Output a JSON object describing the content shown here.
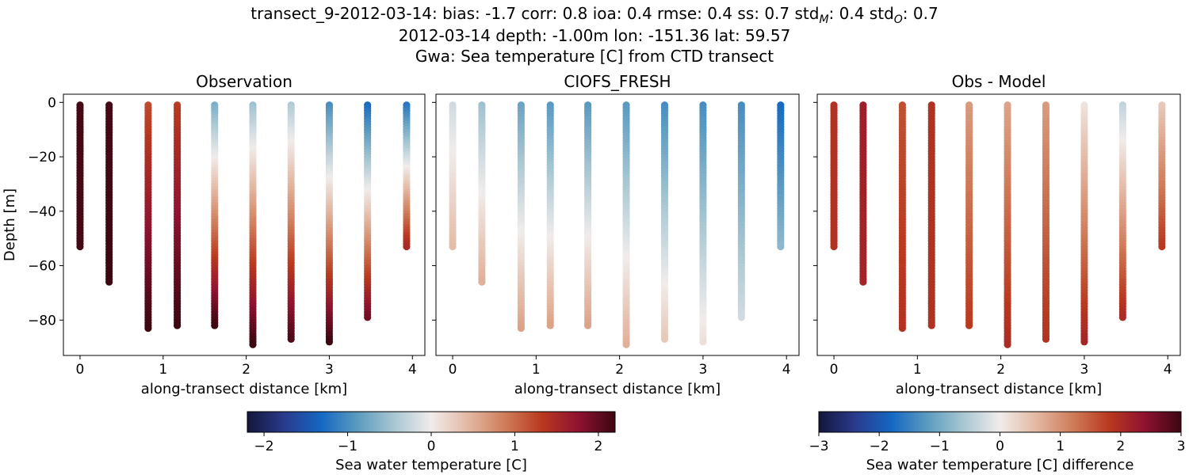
{
  "figure": {
    "title_line1": "transect_9-2012-03-14: bias: -1.7  corr: 0.8  ioa: 0.4  rmse: 0.4  ss: 0.7  std",
    "title_line1_sub_m": "M",
    "title_line1_mid": ": 0.4  std",
    "title_line1_sub_o": "O",
    "title_line1_end": ": 0.7",
    "title_line2": "2012-03-14 depth: -1.00m lon: -151.36 lat: 59.57",
    "title_line3": "Gwa: Sea temperature [C] from CTD transect"
  },
  "colors": {
    "cmap_stops": [
      "#13163b",
      "#2a3a8c",
      "#1467c2",
      "#5c9bc0",
      "#a9c7d2",
      "#f0eceb",
      "#e3b8a3",
      "#cf7d5a",
      "#b9391f",
      "#8f1230",
      "#3c0711"
    ],
    "axis": "#000000"
  },
  "chart_data": [
    {
      "type": "scatter",
      "title": "Observation",
      "xlabel": "along-transect distance [km]",
      "ylabel": "Depth [m]",
      "xlim": [
        -0.2,
        4.15
      ],
      "ylim": [
        -93,
        3
      ],
      "xticks": [
        0,
        1,
        2,
        3,
        4
      ],
      "yticks": [
        0,
        -20,
        -40,
        -60,
        -80
      ],
      "clim": [
        -2.2,
        2.2
      ],
      "profiles": [
        {
          "x": 0.0,
          "max_depth": -53,
          "color_top": 2.15,
          "color_bottom": 2.15
        },
        {
          "x": 0.35,
          "max_depth": -66,
          "color_top": 2.15,
          "color_bottom": 2.2
        },
        {
          "x": 0.82,
          "max_depth": -83,
          "color_top": 1.2,
          "color_bottom": 2.2
        },
        {
          "x": 1.17,
          "max_depth": -82,
          "color_top": 1.3,
          "color_bottom": 2.2
        },
        {
          "x": 1.62,
          "max_depth": -82,
          "color_top": -0.7,
          "color_bottom": 2.2
        },
        {
          "x": 2.08,
          "max_depth": -89,
          "color_top": -0.5,
          "color_bottom": 2.2
        },
        {
          "x": 2.54,
          "max_depth": -87,
          "color_top": -0.4,
          "color_bottom": 2.1
        },
        {
          "x": 3.0,
          "max_depth": -88,
          "color_top": -1.0,
          "color_bottom": 2.2
        },
        {
          "x": 3.46,
          "max_depth": -79,
          "color_top": -1.3,
          "color_bottom": 1.9
        },
        {
          "x": 3.93,
          "max_depth": -53,
          "color_top": -1.2,
          "color_bottom": 1.5
        }
      ]
    },
    {
      "type": "scatter",
      "title": "CIOFS_FRESH",
      "xlabel": "along-transect distance [km]",
      "ylabel": "",
      "xlim": [
        -0.2,
        4.15
      ],
      "ylim": [
        -93,
        3
      ],
      "xticks": [
        0,
        1,
        2,
        3,
        4
      ],
      "yticks": [
        0,
        -20,
        -40,
        -60,
        -80
      ],
      "clim": [
        -2.2,
        2.2
      ],
      "profiles": [
        {
          "x": 0.0,
          "max_depth": -53,
          "color_top": -0.2,
          "color_bottom": 0.4
        },
        {
          "x": 0.35,
          "max_depth": -66,
          "color_top": -0.5,
          "color_bottom": 0.5
        },
        {
          "x": 0.82,
          "max_depth": -83,
          "color_top": -0.8,
          "color_bottom": 0.6
        },
        {
          "x": 1.17,
          "max_depth": -82,
          "color_top": -0.9,
          "color_bottom": 0.6
        },
        {
          "x": 1.62,
          "max_depth": -82,
          "color_top": -0.9,
          "color_bottom": 0.6
        },
        {
          "x": 2.08,
          "max_depth": -89,
          "color_top": -0.9,
          "color_bottom": 0.5
        },
        {
          "x": 2.54,
          "max_depth": -87,
          "color_top": -1.0,
          "color_bottom": 0.3
        },
        {
          "x": 3.0,
          "max_depth": -88,
          "color_top": -1.0,
          "color_bottom": 0.1
        },
        {
          "x": 3.46,
          "max_depth": -79,
          "color_top": -1.0,
          "color_bottom": -0.2
        },
        {
          "x": 3.93,
          "max_depth": -53,
          "color_top": -1.3,
          "color_bottom": -0.6
        }
      ]
    },
    {
      "type": "scatter",
      "title": "Obs - Model",
      "xlabel": "along-transect distance [km]",
      "ylabel": "",
      "xlim": [
        -0.2,
        4.15
      ],
      "ylim": [
        -93,
        3
      ],
      "xticks": [
        0,
        1,
        2,
        3,
        4
      ],
      "yticks": [
        0,
        -20,
        -40,
        -60,
        -80
      ],
      "clim": [
        -3,
        3
      ],
      "profiles": [
        {
          "x": 0.0,
          "max_depth": -53,
          "color_top": 1.9,
          "color_bottom": 1.9
        },
        {
          "x": 0.35,
          "max_depth": -66,
          "color_top": 2.2,
          "color_bottom": 2.1
        },
        {
          "x": 0.82,
          "max_depth": -83,
          "color_top": 1.6,
          "color_bottom": 1.9
        },
        {
          "x": 1.17,
          "max_depth": -82,
          "color_top": 1.9,
          "color_bottom": 1.9
        },
        {
          "x": 1.62,
          "max_depth": -82,
          "color_top": 0.9,
          "color_bottom": 1.8
        },
        {
          "x": 2.08,
          "max_depth": -89,
          "color_top": 0.8,
          "color_bottom": 2.0
        },
        {
          "x": 2.54,
          "max_depth": -87,
          "color_top": 0.9,
          "color_bottom": 1.9
        },
        {
          "x": 3.0,
          "max_depth": -88,
          "color_top": 0.1,
          "color_bottom": 2.1
        },
        {
          "x": 3.46,
          "max_depth": -79,
          "color_top": -0.4,
          "color_bottom": 2.0
        },
        {
          "x": 3.93,
          "max_depth": -53,
          "color_top": 0.4,
          "color_bottom": 1.8
        }
      ]
    }
  ],
  "colorbars": [
    {
      "label": "Sea water temperature [C]",
      "clim": [
        -2.2,
        2.2
      ],
      "ticks": [
        -2,
        -1,
        0,
        1,
        2
      ],
      "tick_labels": [
        "−2",
        "−1",
        "0",
        "1",
        "2"
      ]
    },
    {
      "label": "Sea water temperature [C] difference",
      "clim": [
        -3,
        3
      ],
      "ticks": [
        -3,
        -2,
        -1,
        0,
        1,
        2,
        3
      ],
      "tick_labels": [
        "−3",
        "−2",
        "−1",
        "0",
        "1",
        "2",
        "3"
      ]
    }
  ],
  "tick_labels": {
    "x": [
      "0",
      "1",
      "2",
      "3",
      "4"
    ],
    "y": [
      "0",
      "−20",
      "−40",
      "−60",
      "−80"
    ]
  }
}
